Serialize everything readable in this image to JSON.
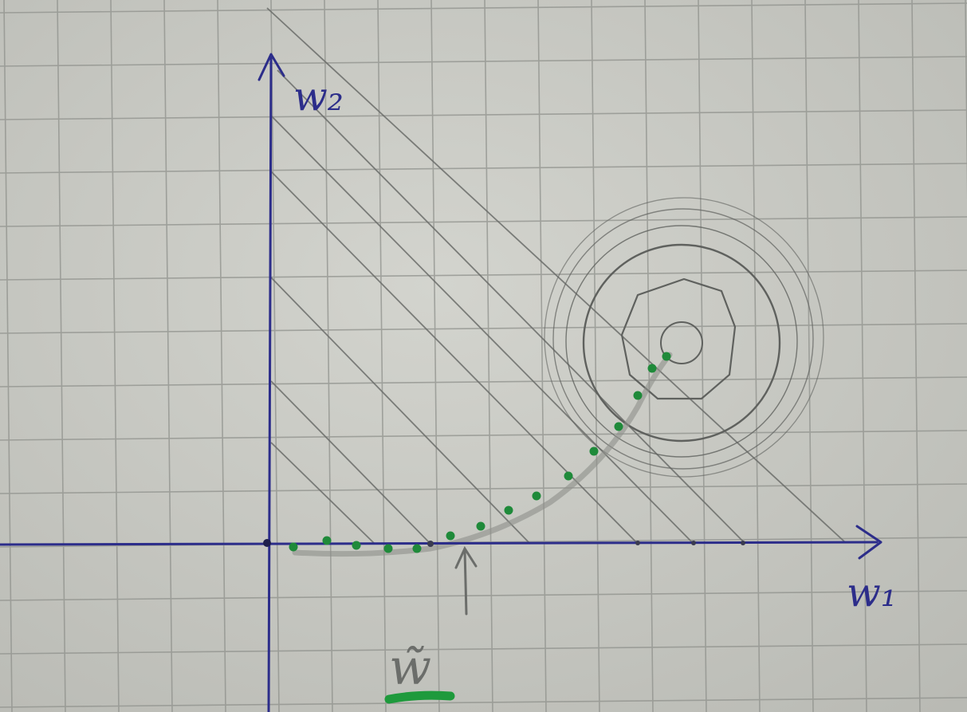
{
  "axes": {
    "x_label": "w₁",
    "y_label": "w₂"
  },
  "marker_label": "w̃",
  "colors": {
    "paper": "#c9cac4",
    "grid": "#8f918c",
    "ink_blue": "#2c2d8a",
    "pencil": "#6b6d6a",
    "dots_green": "#1f8a3a",
    "highlight_green": "#1e9a3c"
  }
}
